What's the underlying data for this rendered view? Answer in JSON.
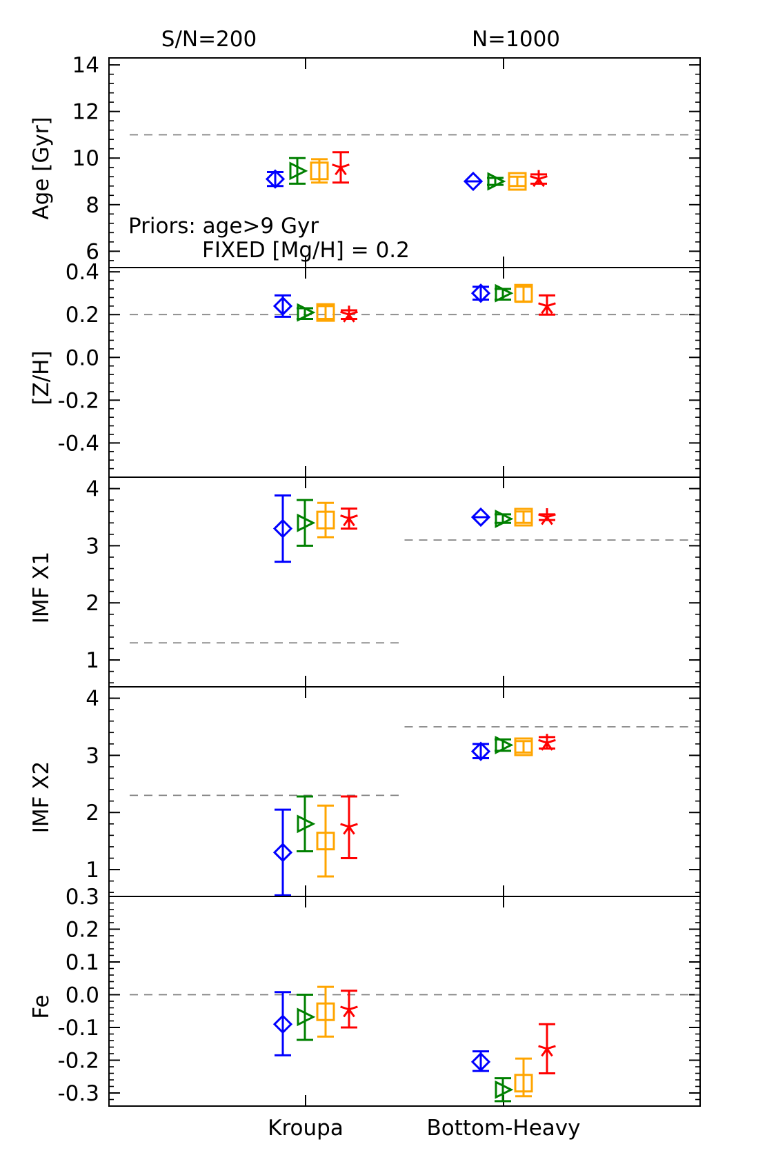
{
  "figure": {
    "header_left": "S/N=200",
    "header_right": "N=1000",
    "annotation_line1": "Priors: age>9 Gyr",
    "annotation_line2": "FIXED [Mg/H] = 0.2"
  },
  "colors": {
    "series": [
      "#0000ff",
      "#008000",
      "#ffa500",
      "#ff0000"
    ],
    "reference": "#808080",
    "axis": "#000000"
  },
  "chart_data": {
    "type": "scatter",
    "x_categories": [
      "Kroupa",
      "Bottom-Heavy"
    ],
    "series_markers": [
      "diamond",
      "triangle-right",
      "square",
      "asterisk"
    ],
    "series": [
      {
        "name": "series-1",
        "marker": "diamond"
      },
      {
        "name": "series-2",
        "marker": "triangle-right"
      },
      {
        "name": "series-3",
        "marker": "square"
      },
      {
        "name": "series-4",
        "marker": "asterisk"
      }
    ],
    "panels": [
      {
        "ylabel": "Age [Gyr]",
        "ylim": [
          5.3,
          14.3
        ],
        "ticks": [
          6,
          8,
          10,
          12,
          14
        ],
        "tick_labels": [
          "6",
          "8",
          "10",
          "12",
          "14"
        ],
        "minor_step": 0.4,
        "reference": [
          {
            "x_range": [
              0,
              1
            ],
            "y": 11
          }
        ],
        "points": [
          {
            "group": 0,
            "series": 0,
            "y": 9.1,
            "err_low": 8.8,
            "err_high": 9.4
          },
          {
            "group": 0,
            "series": 1,
            "y": 9.45,
            "err_low": 8.9,
            "err_high": 10.0
          },
          {
            "group": 0,
            "series": 2,
            "y": 9.45,
            "err_low": 8.95,
            "err_high": 9.95
          },
          {
            "group": 0,
            "series": 3,
            "y": 9.6,
            "err_low": 8.95,
            "err_high": 10.25
          },
          {
            "group": 1,
            "series": 0,
            "y": 9.0,
            "err_low": 9.0,
            "err_high": 9.0
          },
          {
            "group": 1,
            "series": 1,
            "y": 9.0,
            "err_low": 8.85,
            "err_high": 9.15
          },
          {
            "group": 1,
            "series": 2,
            "y": 9.0,
            "err_low": 8.8,
            "err_high": 9.2
          },
          {
            "group": 1,
            "series": 3,
            "y": 9.1,
            "err_low": 8.9,
            "err_high": 9.3
          }
        ]
      },
      {
        "ylabel": "[Z/H]",
        "ylim": [
          -0.56,
          0.42
        ],
        "ticks": [
          -0.4,
          -0.2,
          0.0,
          0.2,
          0.4
        ],
        "tick_labels": [
          "-0.4",
          "-0.2",
          "0.0",
          "0.2",
          "0.4"
        ],
        "minor_step": 0.04,
        "reference": [
          {
            "x_range": [
              0,
              1
            ],
            "y": 0.2
          }
        ],
        "points": [
          {
            "group": 0,
            "series": 0,
            "y": 0.24,
            "err_low": 0.19,
            "err_high": 0.29
          },
          {
            "group": 0,
            "series": 1,
            "y": 0.21,
            "err_low": 0.18,
            "err_high": 0.23
          },
          {
            "group": 0,
            "series": 2,
            "y": 0.21,
            "err_low": 0.18,
            "err_high": 0.24
          },
          {
            "group": 0,
            "series": 3,
            "y": 0.2,
            "err_low": 0.18,
            "err_high": 0.22
          },
          {
            "group": 1,
            "series": 0,
            "y": 0.3,
            "err_low": 0.27,
            "err_high": 0.33
          },
          {
            "group": 1,
            "series": 1,
            "y": 0.3,
            "err_low": 0.27,
            "err_high": 0.32
          },
          {
            "group": 1,
            "series": 2,
            "y": 0.3,
            "err_low": 0.26,
            "err_high": 0.33
          },
          {
            "group": 1,
            "series": 3,
            "y": 0.24,
            "err_low": 0.2,
            "err_high": 0.29
          }
        ]
      },
      {
        "ylabel": "IMF X1",
        "ylim": [
          0.53,
          4.2
        ],
        "ticks": [
          1,
          2,
          3,
          4
        ],
        "tick_labels": [
          "1",
          "2",
          "3",
          "4"
        ],
        "minor_step": 0.2,
        "reference": [
          {
            "x_range": [
              0,
              0.5
            ],
            "y": 1.3
          },
          {
            "x_range": [
              0.5,
              1
            ],
            "y": 3.1
          }
        ],
        "points": [
          {
            "group": 0,
            "series": 0,
            "y": 3.3,
            "err_low": 2.72,
            "err_high": 3.88
          },
          {
            "group": 0,
            "series": 1,
            "y": 3.4,
            "err_low": 3.0,
            "err_high": 3.8
          },
          {
            "group": 0,
            "series": 2,
            "y": 3.45,
            "err_low": 3.15,
            "err_high": 3.75
          },
          {
            "group": 0,
            "series": 3,
            "y": 3.48,
            "err_low": 3.3,
            "err_high": 3.65
          },
          {
            "group": 1,
            "series": 0,
            "y": 3.5,
            "err_low": 3.5,
            "err_high": 3.5
          },
          {
            "group": 1,
            "series": 1,
            "y": 3.47,
            "err_low": 3.4,
            "err_high": 3.55
          },
          {
            "group": 1,
            "series": 2,
            "y": 3.5,
            "err_low": 3.4,
            "err_high": 3.6
          },
          {
            "group": 1,
            "series": 3,
            "y": 3.5,
            "err_low": 3.45,
            "err_high": 3.55
          }
        ]
      },
      {
        "ylabel": "IMF X2",
        "ylim": [
          0.53,
          4.2
        ],
        "ticks": [
          1,
          2,
          3,
          4
        ],
        "tick_labels": [
          "1",
          "2",
          "3",
          "4"
        ],
        "minor_step": 0.2,
        "reference": [
          {
            "x_range": [
              0,
              0.5
            ],
            "y": 2.3
          },
          {
            "x_range": [
              0.5,
              1
            ],
            "y": 3.5
          }
        ],
        "points": [
          {
            "group": 0,
            "series": 0,
            "y": 1.3,
            "err_low": 0.55,
            "err_high": 2.05
          },
          {
            "group": 0,
            "series": 1,
            "y": 1.8,
            "err_low": 1.32,
            "err_high": 2.28
          },
          {
            "group": 0,
            "series": 2,
            "y": 1.5,
            "err_low": 0.88,
            "err_high": 2.12
          },
          {
            "group": 0,
            "series": 3,
            "y": 1.75,
            "err_low": 1.2,
            "err_high": 2.28
          },
          {
            "group": 1,
            "series": 0,
            "y": 3.07,
            "err_low": 2.95,
            "err_high": 3.2
          },
          {
            "group": 1,
            "series": 1,
            "y": 3.18,
            "err_low": 3.08,
            "err_high": 3.28
          },
          {
            "group": 1,
            "series": 2,
            "y": 3.15,
            "err_low": 3.05,
            "err_high": 3.25
          },
          {
            "group": 1,
            "series": 3,
            "y": 3.22,
            "err_low": 3.12,
            "err_high": 3.32
          }
        ]
      },
      {
        "ylabel": "Fe",
        "ylim": [
          -0.34,
          0.3
        ],
        "ticks": [
          -0.3,
          -0.2,
          -0.1,
          0.0,
          0.1,
          0.2,
          0.3
        ],
        "tick_labels": [
          "-0.3",
          "-0.2",
          "-0.1",
          "0.0",
          "0.1",
          "0.2",
          "0.3"
        ],
        "minor_step": 0.02,
        "reference": [
          {
            "x_range": [
              0,
              1
            ],
            "y": 0.0
          }
        ],
        "points": [
          {
            "group": 0,
            "series": 0,
            "y": -0.09,
            "err_low": -0.185,
            "err_high": 0.008
          },
          {
            "group": 0,
            "series": 1,
            "y": -0.068,
            "err_low": -0.138,
            "err_high": 0.0
          },
          {
            "group": 0,
            "series": 2,
            "y": -0.052,
            "err_low": -0.128,
            "err_high": 0.024
          },
          {
            "group": 0,
            "series": 3,
            "y": -0.045,
            "err_low": -0.1,
            "err_high": 0.012
          },
          {
            "group": 1,
            "series": 0,
            "y": -0.205,
            "err_low": -0.233,
            "err_high": -0.173
          },
          {
            "group": 1,
            "series": 1,
            "y": -0.29,
            "err_low": -0.325,
            "err_high": -0.255
          },
          {
            "group": 1,
            "series": 2,
            "y": -0.27,
            "err_low": -0.31,
            "err_high": -0.195
          },
          {
            "group": 1,
            "series": 3,
            "y": -0.165,
            "err_low": -0.24,
            "err_high": -0.09
          }
        ]
      }
    ]
  }
}
